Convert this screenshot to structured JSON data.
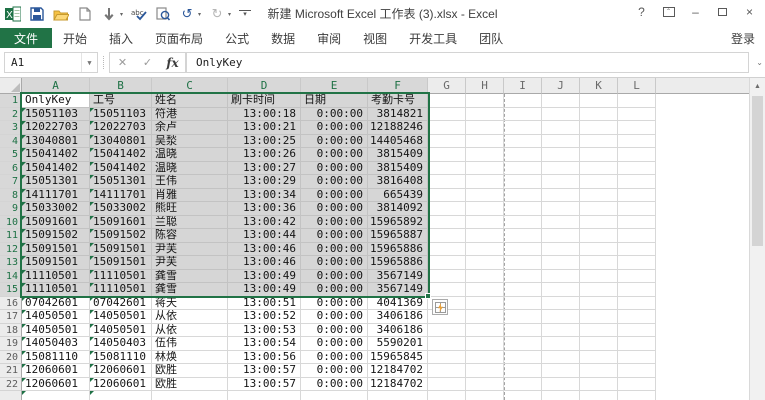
{
  "window": {
    "title": "新建 Microsoft Excel 工作表 (3).xlsx - Excel",
    "sign_in": "登录",
    "qat_icons": [
      "excel-logo",
      "save",
      "open-folder",
      "new-document",
      "touch-mode",
      "spell-check",
      "print-preview",
      "undo",
      "redo",
      "customize-quick-access"
    ],
    "controls": {
      "help": "?",
      "minimize": "–",
      "close": "×"
    },
    "glyphs": {
      "undo": "↺",
      "redo": "↻",
      "dropdown": "▾",
      "scroll_up": "▲",
      "formula_expand": "⌄",
      "ribbon_opt": "⌃"
    }
  },
  "ribbon": {
    "tabs": [
      {
        "label": "文件",
        "active": true
      },
      {
        "label": "开始"
      },
      {
        "label": "插入"
      },
      {
        "label": "页面布局"
      },
      {
        "label": "公式"
      },
      {
        "label": "数据"
      },
      {
        "label": "审阅"
      },
      {
        "label": "视图"
      },
      {
        "label": "开发工具"
      },
      {
        "label": "团队"
      }
    ]
  },
  "formula_bar": {
    "name_box": "A1",
    "cancel": "✕",
    "enter": "✓",
    "fx": "fx",
    "formula": "OnlyKey"
  },
  "sheet": {
    "columns": [
      "A",
      "B",
      "C",
      "D",
      "E",
      "F",
      "G",
      "H",
      "I",
      "J",
      "K",
      "L"
    ],
    "selected_columns": [
      "A",
      "B",
      "C",
      "D",
      "E",
      "F"
    ],
    "selection": {
      "range": "A1:F15",
      "active_cell": "A1"
    },
    "text_flag_columns": [
      0,
      1
    ],
    "rows": [
      {
        "n": 1,
        "values": [
          "OnlyKey",
          "工号",
          "姓名",
          "刷卡时间",
          "日期",
          "考勤卡号"
        ]
      },
      {
        "n": 2,
        "values": [
          "15051103",
          "15051103",
          "符港",
          "13:00:18",
          "0:00:00",
          "3814821"
        ]
      },
      {
        "n": 3,
        "values": [
          "12022703",
          "12022703",
          "余卢",
          "13:00:21",
          "0:00:00",
          "12188246"
        ]
      },
      {
        "n": 4,
        "values": [
          "13040801",
          "13040801",
          "吴湬",
          "13:00:25",
          "0:00:00",
          "14405468"
        ]
      },
      {
        "n": 5,
        "values": [
          "15041402",
          "15041402",
          "温晓",
          "13:00:26",
          "0:00:00",
          "3815409"
        ]
      },
      {
        "n": 6,
        "values": [
          "15041402",
          "15041402",
          "温晓",
          "13:00:27",
          "0:00:00",
          "3815409"
        ]
      },
      {
        "n": 7,
        "values": [
          "15051301",
          "15051301",
          "王伟",
          "13:00:29",
          "0:00:00",
          "3816408"
        ]
      },
      {
        "n": 8,
        "values": [
          "14111701",
          "14111701",
          "肖雅",
          "13:00:34",
          "0:00:00",
          "665439"
        ]
      },
      {
        "n": 9,
        "values": [
          "15033002",
          "15033002",
          "熊旺",
          "13:00:36",
          "0:00:00",
          "3814092"
        ]
      },
      {
        "n": 10,
        "values": [
          "15091601",
          "15091601",
          "兰聪",
          "13:00:42",
          "0:00:00",
          "15965892"
        ]
      },
      {
        "n": 11,
        "values": [
          "15091502",
          "15091502",
          "陈容",
          "13:00:44",
          "0:00:00",
          "15965887"
        ]
      },
      {
        "n": 12,
        "values": [
          "15091501",
          "15091501",
          "尹芙",
          "13:00:46",
          "0:00:00",
          "15965886"
        ]
      },
      {
        "n": 13,
        "values": [
          "15091501",
          "15091501",
          "尹芙",
          "13:00:46",
          "0:00:00",
          "15965886"
        ]
      },
      {
        "n": 14,
        "values": [
          "11110501",
          "11110501",
          "龚雪",
          "13:00:49",
          "0:00:00",
          "3567149"
        ]
      },
      {
        "n": 15,
        "values": [
          "11110501",
          "11110501",
          "龚雪",
          "13:00:49",
          "0:00:00",
          "3567149"
        ]
      },
      {
        "n": 16,
        "values": [
          "07042601",
          "07042601",
          "蒋天",
          "13:00:51",
          "0:00:00",
          "4041369"
        ]
      },
      {
        "n": 17,
        "values": [
          "14050501",
          "14050501",
          "从依",
          "13:00:52",
          "0:00:00",
          "3406186"
        ]
      },
      {
        "n": 18,
        "values": [
          "14050501",
          "14050501",
          "从依",
          "13:00:53",
          "0:00:00",
          "3406186"
        ]
      },
      {
        "n": 19,
        "values": [
          "14050403",
          "14050403",
          "伍伟",
          "13:00:54",
          "0:00:00",
          "5590201"
        ]
      },
      {
        "n": 20,
        "values": [
          "15081110",
          "15081110",
          "林焕",
          "13:00:56",
          "0:00:00",
          "15965845"
        ]
      },
      {
        "n": 21,
        "values": [
          "12060601",
          "12060601",
          "欧胜",
          "13:00:57",
          "0:00:00",
          "12184702"
        ]
      },
      {
        "n": 22,
        "values": [
          "12060601",
          "12060601",
          "欧胜",
          "13:00:57",
          "0:00:00",
          "12184702"
        ]
      },
      {
        "n": 23,
        "values": [
          "",
          "",
          "",
          "",
          "",
          ""
        ],
        "partial": true
      }
    ]
  },
  "colors": {
    "accent": "#217346",
    "selection_fill": "#d6d6d6",
    "gridline": "#d8d8d8",
    "flag_triangle": "#1e7145"
  }
}
